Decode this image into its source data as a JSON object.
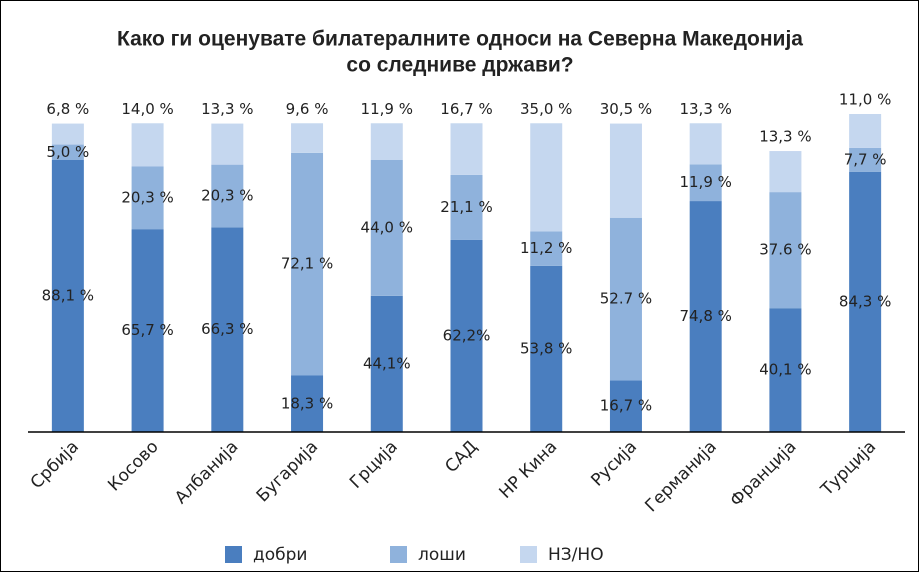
{
  "chart_data": {
    "type": "stacked_bar",
    "title": [
      "Како ги оценувате билатералните односи на Северна Македонија",
      "со следниве држави?"
    ],
    "categories": [
      "Србија",
      "Косово",
      "Албанија",
      "Бугарија",
      "Грција",
      "САД",
      "НР Кина",
      "Русија",
      "Германија",
      "Франција",
      "Турција"
    ],
    "series": [
      {
        "name": "добри",
        "color": "#4a7ebf",
        "values": [
          88.1,
          65.7,
          66.3,
          18.3,
          44.1,
          62.2,
          53.8,
          16.7,
          74.8,
          40.1,
          84.3
        ],
        "value_labels": [
          "88,1 %",
          "65,7 %",
          "66,3 %",
          "18,3 %",
          "44,1%",
          "62,2%",
          "53,8 %",
          "16,7 %",
          "74,8 %",
          "40,1 %",
          "84,3 %"
        ]
      },
      {
        "name": "лоши",
        "color": "#8fb2dc",
        "values": [
          5.0,
          20.3,
          20.3,
          72.1,
          44.0,
          21.1,
          11.2,
          52.7,
          11.9,
          37.6,
          7.7
        ],
        "value_labels": [
          "5,0 %",
          "20,3 %",
          "20,3 %",
          "72,1 %",
          "44,0 %",
          "21,1 %",
          "11,2 %",
          "52.7 %",
          "11,9 %",
          "37.6 %",
          "7,7 %"
        ]
      },
      {
        "name": "НЗ/НО",
        "color": "#c5d7ef",
        "values": [
          6.8,
          14.0,
          13.3,
          9.6,
          11.9,
          16.7,
          35.0,
          30.5,
          13.3,
          13.3,
          11.0
        ],
        "value_labels": [
          "6,8 %",
          "14,0 %",
          "13,3 %",
          "9,6 %",
          "11,9 %",
          "16,7 %",
          "35,0 %",
          "30,5 %",
          "13,3 %",
          "13,3 %",
          "11,0 %"
        ]
      }
    ],
    "legend": "bottom"
  }
}
